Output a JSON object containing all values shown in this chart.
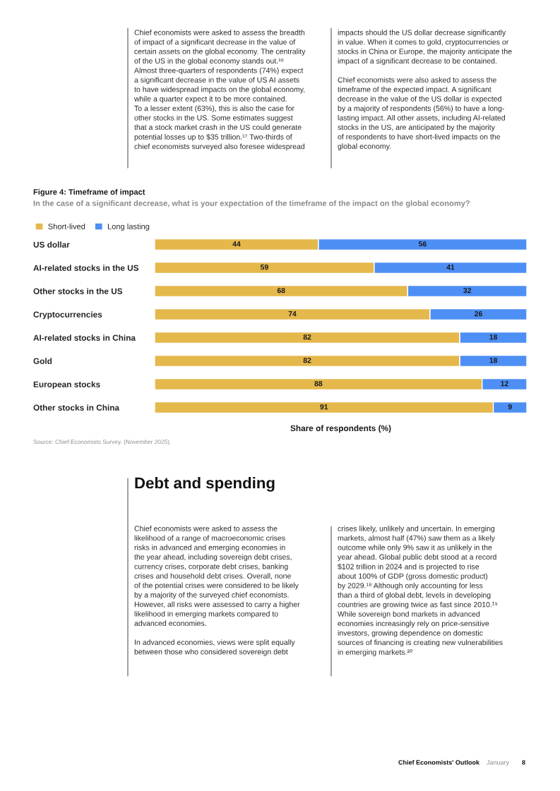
{
  "chart_data": {
    "type": "bar",
    "orientation": "horizontal",
    "stacked": true,
    "data_labels": true,
    "legend": "top left",
    "title": "Figure 4: Timeframe of impact",
    "subtitle": "In the case of a significant decrease, what is your expectation of the timeframe of the impact on the global economy?",
    "xlabel": "Share of respondents (%)",
    "categories": [
      "US dollar",
      "AI-related stocks in the US",
      "Other stocks in the US",
      "Cryptocurrencies",
      "AI-related stocks in China",
      "Gold",
      "European stocks",
      "Other stocks in China"
    ],
    "series": [
      {
        "name": "Short-lived",
        "color": "#e5b84c",
        "values": [
          44,
          59,
          68,
          74,
          82,
          82,
          88,
          91
        ]
      },
      {
        "name": "Long lasting",
        "color": "#4d8ff5",
        "values": [
          56,
          41,
          32,
          26,
          18,
          18,
          12,
          9
        ]
      }
    ],
    "annotations": [
      "Source: Chief Economists Survey. (November 2025).",
      "Chief economists were asked to assess the breadth\nof impact of a significant decrease in the value of\ncertain assets on the global economy. The centrality\nof the US in the global economy stands out.¹⁶\nAlmost three-quarters of respondents (74%) expect\na significant decrease in the value of US AI assets\nto have widespread impacts on the global economy,\nwhile a quarter expect it to be more contained.\nTo a lesser extent (63%), this is also the case for\nother stocks in the US. Some estimates suggest\nthat a stock market crash in the US could generate\npotential losses up to $35 trillion.¹⁷ Two-thirds of\nchief economists surveyed also foresee widespread",
      "impacts should the US dollar decrease significantly\nin value. When it comes to gold, cryptocurrencies or\nstocks in China or Europe, the majority anticipate the\nimpact of a significant decrease to be contained.\n\nChief economists were also asked to assess the\ntimeframe of the expected impact. A significant\ndecrease in the value of the US dollar is expected\nby a majority of respondents (56%) to have a long-\nlasting impact. All other assets, including AI-related\nstocks in the US, are anticipated by the majority\nof respondents to have short-lived impacts on the\nglobal economy.",
      "Debt and spending",
      "Chief economists were asked to assess the\nlikelihood of a range of macroeconomic crises\nrisks in advanced and emerging economies in\nthe year ahead, including sovereign debt crises,\ncurrency crises, corporate debt crises, banking\ncrises and household debt crises. Overall, none\nof the potential crises were considered to be likely\nby a majority of the surveyed chief economists.\nHowever, all risks were assessed to carry a higher\nlikelihood in emerging markets compared to\nadvanced economies.\n\nIn advanced economies, views were split equally\nbetween those who considered sovereign debt",
      "crises likely, unlikely and uncertain. In emerging\nmarkets, almost half (47%) saw them as a likely\noutcome while only 9% saw it as unlikely in the\nyear ahead. Global public debt stood at a record\n$102 trillion in 2024 and is projected to rise\nabout 100% of GDP (gross domestic product)\nby 2029.¹⁸ Although only accounting for less\nthan a third of global debt, levels in developing\ncountries are growing twice as fast since 2010.¹⁹\nWhile sovereign bond markets in advanced\neconomies increasingly rely on price-sensitive\ninvestors, growing dependence on domestic\nsources of financing is creating new vulnerabilities\nin emerging markets.²⁰",
      "Chief Economists' Outlook",
      "January",
      "8"
    ]
  }
}
